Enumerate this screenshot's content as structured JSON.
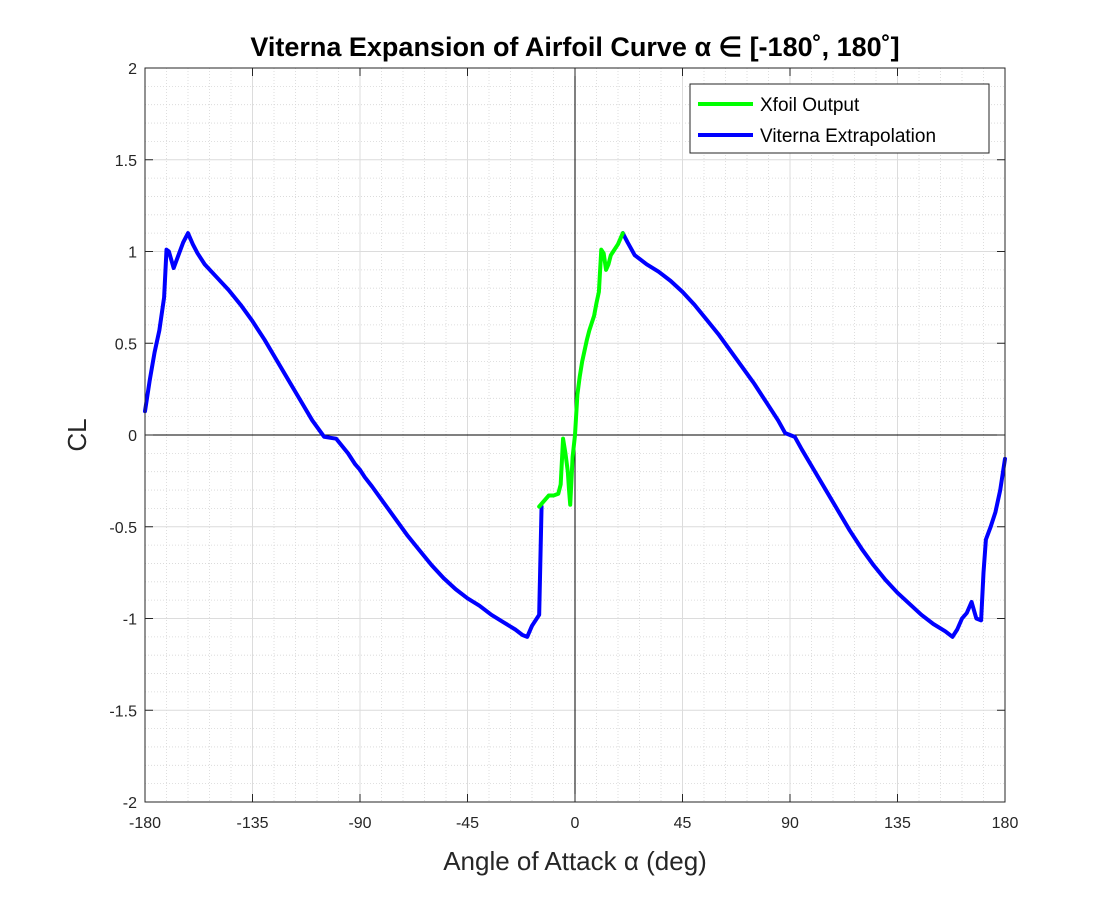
{
  "chart_data": {
    "type": "line",
    "title": "Viterna Expansion of Airfoil Curve α ∈ [-180˚, 180˚]",
    "xlabel": "Angle of Attack α (deg)",
    "ylabel": "CL",
    "xlim": [
      -180,
      180
    ],
    "ylim": [
      -2,
      2
    ],
    "x_ticks": [
      -180,
      -135,
      -90,
      -45,
      0,
      45,
      90,
      135,
      180
    ],
    "y_ticks": [
      -2,
      -1.5,
      -1,
      -0.5,
      0,
      0.5,
      1,
      1.5,
      2
    ],
    "x_tick_labels": [
      "-180",
      "-135",
      "-90",
      "-45",
      "0",
      "45",
      "90",
      "135",
      "180"
    ],
    "y_tick_labels": [
      "-2",
      "-1.5",
      "-1",
      "-0.5",
      "0",
      "0.5",
      "1",
      "1.5",
      "2"
    ],
    "grid": true,
    "minor_grid": true,
    "legend_position": "top-right",
    "series": [
      {
        "name": "Viterna Extrapolation",
        "color": "#0000ff",
        "segments": [
          {
            "x": [
              -180,
              -178,
              -176,
              -174,
              -172,
              -171,
              -170,
              -168,
              -166,
              -164,
              -162,
              -160,
              -158,
              -155,
              -150,
              -145,
              -140,
              -135,
              -130,
              -125,
              -120,
              -115,
              -110,
              -105,
              -100,
              -95,
              -92,
              -90,
              -88,
              -85,
              -80,
              -75,
              -70,
              -65,
              -60,
              -55,
              -50,
              -45,
              -40,
              -35,
              -30,
              -25,
              -22,
              -20,
              -18,
              -15,
              -14
            ],
            "y": [
              0.13,
              0.3,
              0.45,
              0.57,
              0.75,
              1.01,
              1.0,
              0.91,
              0.98,
              1.05,
              1.1,
              1.04,
              0.99,
              0.93,
              0.86,
              0.79,
              0.71,
              0.62,
              0.52,
              0.41,
              0.3,
              0.19,
              0.08,
              -0.01,
              -0.02,
              -0.1,
              -0.16,
              -0.19,
              -0.23,
              -0.28,
              -0.37,
              -0.46,
              -0.55,
              -0.63,
              -0.71,
              -0.78,
              -0.84,
              -0.89,
              -0.93,
              -0.98,
              -1.02,
              -1.06,
              -1.09,
              -1.1,
              -1.04,
              -0.98,
              -0.39
            ]
          },
          {
            "x": [
              20,
              22,
              25,
              30,
              35,
              40,
              45,
              50,
              55,
              60,
              65,
              70,
              75,
              80,
              85,
              88,
              90,
              92,
              95,
              100,
              105,
              110,
              115,
              120,
              125,
              130,
              135,
              140,
              145,
              150,
              155,
              158,
              160,
              162,
              164,
              166,
              168,
              170,
              171,
              172,
              174,
              176,
              178,
              180
            ],
            "y": [
              1.1,
              1.05,
              0.98,
              0.93,
              0.89,
              0.84,
              0.78,
              0.71,
              0.63,
              0.55,
              0.46,
              0.37,
              0.28,
              0.18,
              0.08,
              0.01,
              0.0,
              -0.01,
              -0.08,
              -0.19,
              -0.3,
              -0.41,
              -0.52,
              -0.62,
              -0.71,
              -0.79,
              -0.86,
              -0.92,
              -0.98,
              -1.03,
              -1.07,
              -1.1,
              -1.06,
              -1.0,
              -0.97,
              -0.91,
              -1.0,
              -1.01,
              -0.75,
              -0.57,
              -0.5,
              -0.42,
              -0.3,
              -0.13
            ]
          }
        ]
      },
      {
        "name": "Xfoil Output",
        "color": "#00ff00",
        "segments": [
          {
            "x": [
              -15,
              -13,
              -11,
              -9,
              -7,
              -6,
              -5,
              -4,
              -3,
              -2.5,
              -2,
              -1,
              0,
              1,
              2,
              3,
              4,
              5,
              6,
              7,
              8,
              9,
              10,
              11,
              12,
              13,
              14,
              15,
              16,
              17,
              18,
              19,
              20
            ],
            "y": [
              -0.39,
              -0.36,
              -0.33,
              -0.33,
              -0.32,
              -0.27,
              -0.02,
              -0.1,
              -0.2,
              -0.3,
              -0.38,
              -0.12,
              0.0,
              0.22,
              0.32,
              0.4,
              0.46,
              0.52,
              0.57,
              0.61,
              0.65,
              0.72,
              0.78,
              1.01,
              0.99,
              0.9,
              0.93,
              0.98,
              1.0,
              1.02,
              1.04,
              1.07,
              1.1
            ]
          }
        ]
      }
    ]
  }
}
